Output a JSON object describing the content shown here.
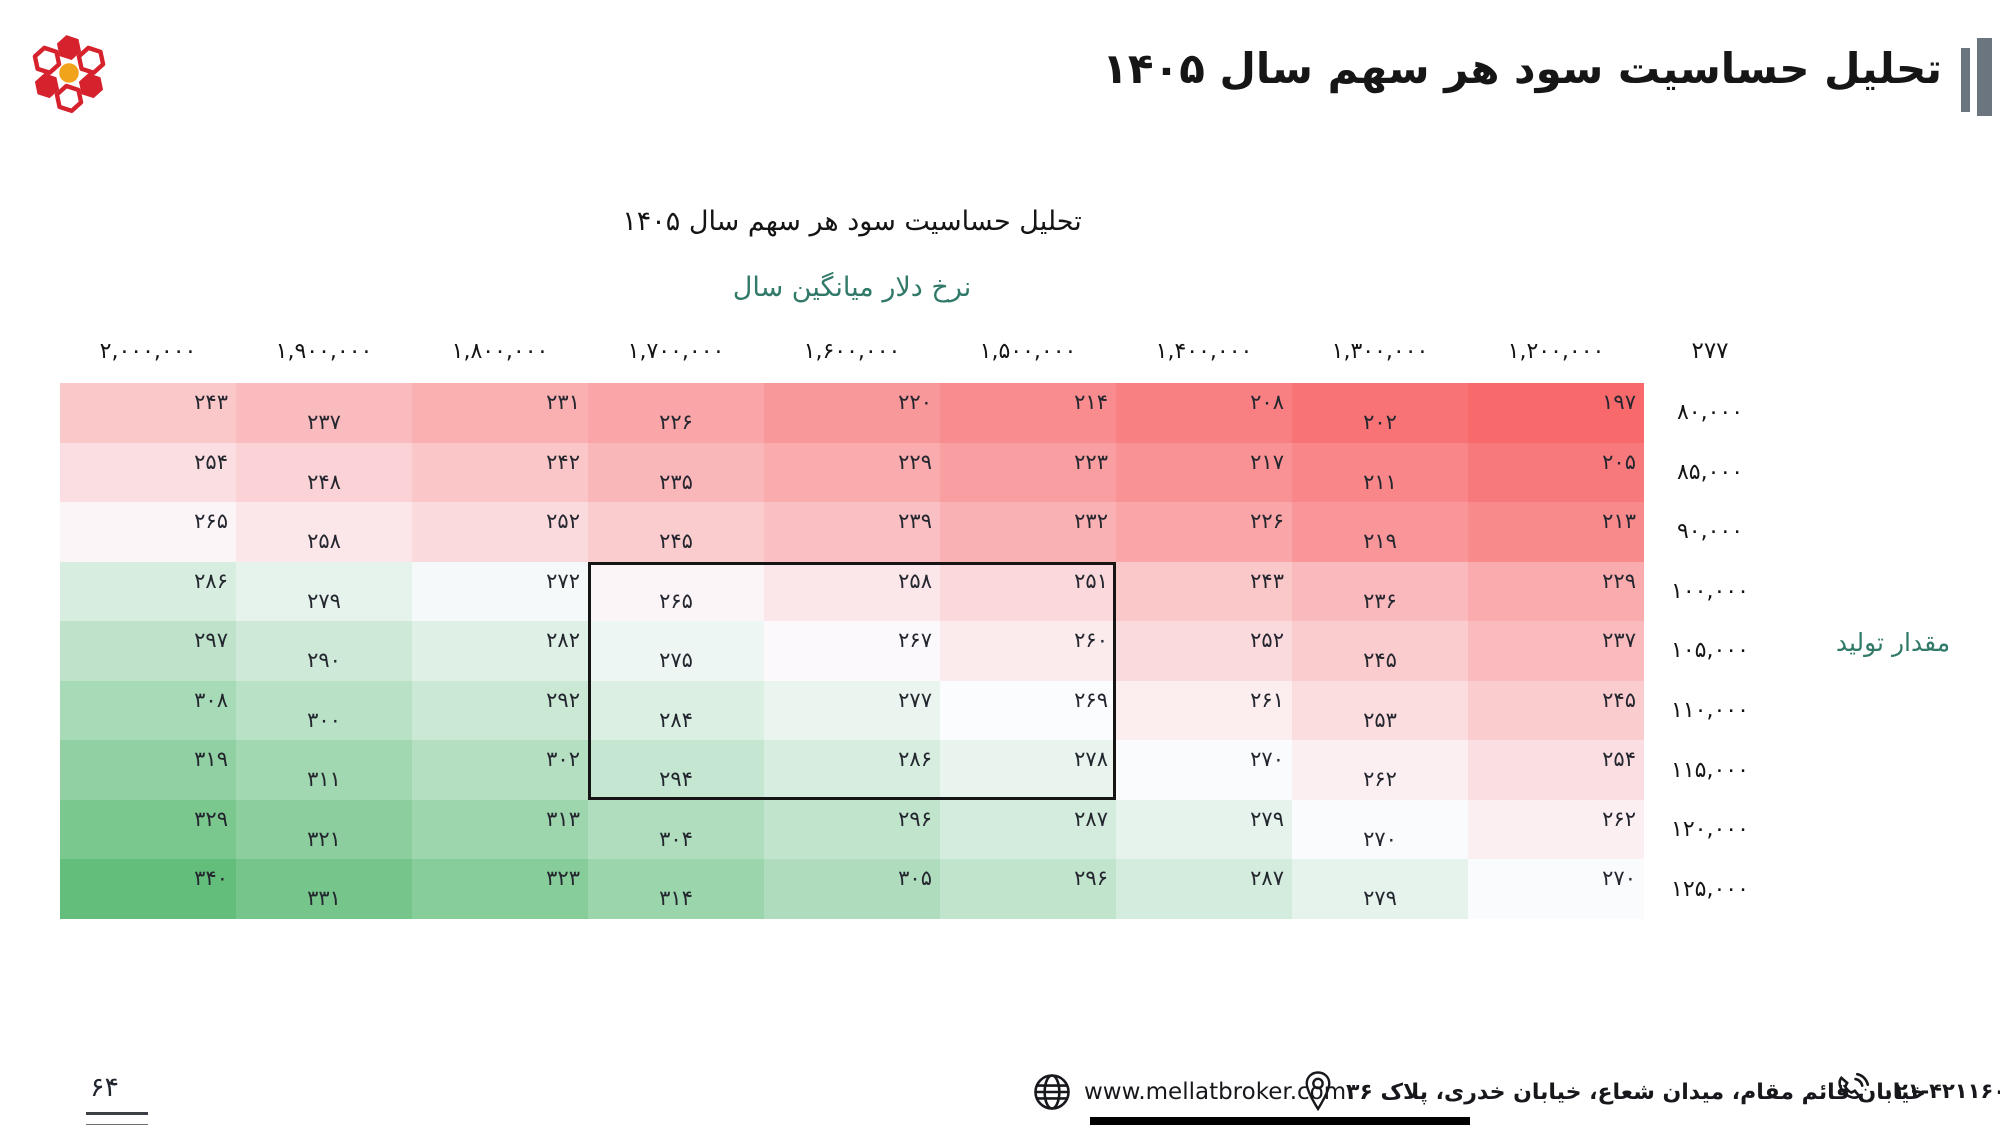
{
  "colors": {
    "accent_teal": "#317A69",
    "title_bar_gray": "#6A7580",
    "logo_red": "#D6222D",
    "logo_orange": "#F2A31C",
    "cell_text": "#23262E",
    "heat_min_red": "#F8696B",
    "heat_mid_white": "#FCFCFF",
    "heat_max_green": "#63BE7B"
  },
  "header": {
    "title": "تحلیل حساسیت سود هر سهم سال  ۱۴۰۵"
  },
  "chart_data": {
    "type": "heatmap",
    "title": "تحلیل حساسیت سود هر سهم سال  ۱۴۰۵",
    "x_axis_title": "نرخ دلار میانگین سال",
    "y_axis_title": "مقدار تولید",
    "base_eps_label": "۲۷۷",
    "base_eps_value": 277,
    "columns": [
      "۲,۰۰۰,۰۰۰",
      "۱,۹۰۰,۰۰۰",
      "۱,۸۰۰,۰۰۰",
      "۱,۷۰۰,۰۰۰",
      "۱,۶۰۰,۰۰۰",
      "۱,۵۰۰,۰۰۰",
      "۱,۴۰۰,۰۰۰",
      "۱,۳۰۰,۰۰۰",
      "۱,۲۰۰,۰۰۰"
    ],
    "columns_numeric": [
      2000000,
      1900000,
      1800000,
      1700000,
      1600000,
      1500000,
      1400000,
      1300000,
      1200000
    ],
    "rows": [
      "۸۰,۰۰۰",
      "۸۵,۰۰۰",
      "۹۰,۰۰۰",
      "۱۰۰,۰۰۰",
      "۱۰۵,۰۰۰",
      "۱۱۰,۰۰۰",
      "۱۱۵,۰۰۰",
      "۱۲۰,۰۰۰",
      "۱۲۵,۰۰۰"
    ],
    "rows_numeric": [
      80000,
      85000,
      90000,
      100000,
      105000,
      110000,
      115000,
      120000,
      125000
    ],
    "values": [
      [
        243,
        237,
        231,
        226,
        220,
        214,
        208,
        202,
        197
      ],
      [
        254,
        248,
        242,
        235,
        229,
        223,
        217,
        211,
        205
      ],
      [
        265,
        258,
        252,
        245,
        239,
        232,
        226,
        219,
        213
      ],
      [
        286,
        279,
        272,
        265,
        258,
        251,
        243,
        236,
        229
      ],
      [
        297,
        290,
        282,
        275,
        267,
        260,
        252,
        245,
        237
      ],
      [
        308,
        300,
        292,
        284,
        277,
        269,
        261,
        253,
        245
      ],
      [
        319,
        311,
        302,
        294,
        286,
        278,
        270,
        262,
        254
      ],
      [
        329,
        321,
        313,
        304,
        296,
        287,
        279,
        270,
        262
      ],
      [
        340,
        331,
        323,
        314,
        305,
        296,
        287,
        279,
        270
      ]
    ],
    "colorscale": {
      "min": 197,
      "mid": 268.5,
      "max": 340,
      "min_color": "#F8696B",
      "mid_color": "#FCFCFF",
      "max_color": "#63BE7B"
    },
    "highlight_box": {
      "row_start": 3,
      "row_end": 6,
      "col_start": 3,
      "col_end": 5
    }
  },
  "footer": {
    "page_number": "۶۴",
    "website": "www.mellatbroker.com",
    "address": "خیابان قائم مقام، میدان شعاع، خیابان خدری، پلاک ۳۶",
    "phone": "۰۲۱-۴۲۱۱۶۰۰۰",
    "icons": [
      "globe-icon",
      "location-pin-icon",
      "phone-icon"
    ]
  }
}
